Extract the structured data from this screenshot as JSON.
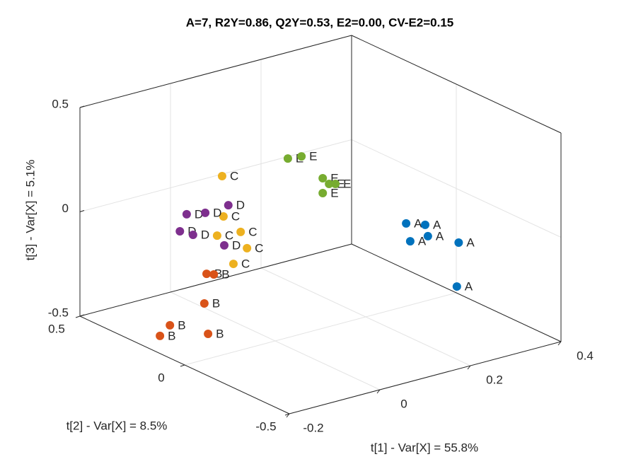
{
  "chart_data": {
    "type": "scatter3d",
    "title": "A=7, R2Y=0.86, Q2Y=0.53, E2=0.00, CV-E2=0.15",
    "xlabel": "t[1] - Var[X] = 55.8%",
    "ylabel": "t[2] - Var[X] = 8.5%",
    "zlabel": "t[3] - Var[X] = 5.1%",
    "xlim": [
      -0.2,
      0.4
    ],
    "xticks": [
      -0.2,
      0,
      0.2,
      0.4
    ],
    "ylim": [
      -0.5,
      0.5
    ],
    "yticks": [
      -0.5,
      0,
      0.5
    ],
    "zlim": [
      -0.5,
      0.5
    ],
    "zticks": [
      -0.5,
      0,
      0.5
    ],
    "grid": true,
    "series": [
      {
        "name": "A",
        "color": "#0072BD",
        "x": [
          0.243,
          0.285,
          0.291,
          0.252,
          0.359,
          0.355
        ],
        "y": [
          -0.1,
          -0.1,
          -0.1,
          -0.1,
          -0.1,
          -0.1
        ],
        "z": [
          -0.03,
          -0.061,
          -0.119,
          -0.121,
          -0.189,
          -0.397
        ]
      },
      {
        "name": "B",
        "color": "#D95319",
        "x": [
          -0.059,
          -0.043,
          -0.064,
          -0.14,
          -0.162,
          -0.102
        ],
        "y": [
          0.2,
          0.2,
          0.2,
          0.2,
          0.2,
          0.1
        ],
        "z": [
          -0.238,
          -0.25,
          -0.377,
          -0.438,
          -0.476,
          -0.454
        ]
      },
      {
        "name": "C",
        "color": "#EDB120",
        "x": [
          -0.071,
          -0.068,
          -0.03,
          -0.082,
          -0.016,
          -0.046
        ],
        "y": [
          0.1,
          0.1,
          0.1,
          0.1,
          0.1,
          0.1
        ],
        "z": [
          0.284,
          0.089,
          -0.007,
          0.005,
          -0.093,
          -0.151
        ]
      },
      {
        "name": "D",
        "color": "#7E2F8E",
        "x": [
          -0.103,
          -0.062,
          -0.011,
          -0.118,
          -0.089,
          -0.02
        ],
        "y": [
          0.2,
          0.2,
          0.2,
          0.2,
          0.2,
          0.2
        ],
        "z": [
          0.073,
          0.056,
          0.063,
          0.0,
          -0.034,
          -0.124
        ]
      },
      {
        "name": "E",
        "color": "#77AC30",
        "x": [
          0.028,
          0.058,
          0.105,
          0.119,
          0.133,
          0.105
        ],
        "y": [
          0,
          0,
          0,
          0,
          0,
          0
        ],
        "z": [
          0.358,
          0.351,
          0.219,
          0.184,
          0.176,
          0.148
        ]
      }
    ]
  }
}
